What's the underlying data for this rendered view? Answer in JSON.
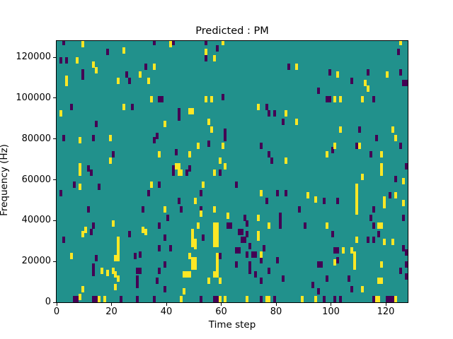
{
  "figure": {
    "title": "Predicted : PM",
    "xlabel": "Time step",
    "ylabel": "Frequency (Hz)"
  },
  "chart_data": {
    "type": "heatmap",
    "title": "Predicted : PM",
    "xlabel": "Time step",
    "ylabel": "Frequency (Hz)",
    "xlim": [
      0,
      128
    ],
    "ylim": [
      0,
      128000
    ],
    "xticks": [
      0,
      20,
      40,
      60,
      80,
      100,
      120
    ],
    "yticks": [
      0,
      20000,
      40000,
      60000,
      80000,
      100000,
      120000
    ],
    "grid": false,
    "legend_position": "none",
    "colormap": "viridis",
    "colors": {
      "background_mid": "#21918c",
      "low_dark": "#440154",
      "high_yellow": "#fde725",
      "spine": "#000000"
    },
    "value_legend": {
      "dark": "low value",
      "background": "mid value",
      "yellow": "high value"
    },
    "cell_units": {
      "x_per_cell": 1,
      "y_hz_per_cell": 1000
    },
    "marks": {
      "dark": [
        [
          2,
          127
        ],
        [
          42,
          127
        ],
        [
          18,
          122
        ],
        [
          1,
          118
        ],
        [
          3,
          118
        ],
        [
          9,
          112
        ],
        [
          9,
          110
        ],
        [
          25,
          111
        ],
        [
          26,
          108
        ],
        [
          5,
          95
        ],
        [
          27,
          95
        ],
        [
          14,
          87
        ],
        [
          2,
          80
        ],
        [
          13,
          80
        ],
        [
          20,
          72
        ],
        [
          11,
          65
        ],
        [
          35,
          127
        ],
        [
          54,
          127
        ],
        [
          58,
          124
        ],
        [
          54,
          119
        ],
        [
          32,
          115
        ],
        [
          37,
          99
        ],
        [
          38,
          99
        ],
        [
          60,
          100
        ],
        [
          44,
          93
        ],
        [
          44,
          90
        ],
        [
          61,
          83
        ],
        [
          61,
          80
        ],
        [
          36,
          81
        ],
        [
          35,
          79
        ],
        [
          55,
          77
        ],
        [
          43,
          73
        ],
        [
          42,
          65
        ],
        [
          48,
          65
        ],
        [
          84,
          115
        ],
        [
          95,
          103
        ],
        [
          76,
          95
        ],
        [
          77,
          92
        ],
        [
          79,
          92
        ],
        [
          82,
          88
        ],
        [
          74,
          76
        ],
        [
          77,
          72
        ],
        [
          78,
          69
        ],
        [
          124,
          122
        ],
        [
          99,
          112
        ],
        [
          107,
          108
        ],
        [
          113,
          112
        ],
        [
          125,
          112
        ],
        [
          126,
          107
        ],
        [
          127,
          107
        ],
        [
          98,
          99
        ],
        [
          99,
          99
        ],
        [
          115,
          99
        ],
        [
          110,
          84
        ],
        [
          116,
          80
        ],
        [
          109,
          76
        ],
        [
          100,
          74
        ],
        [
          114,
          72
        ],
        [
          125,
          76
        ],
        [
          127,
          66
        ],
        [
          12,
          63
        ],
        [
          6,
          57
        ],
        [
          15,
          56
        ],
        [
          1,
          53
        ],
        [
          11,
          45
        ],
        [
          31,
          45
        ],
        [
          13,
          37
        ],
        [
          12,
          34
        ],
        [
          26,
          33
        ],
        [
          2,
          30
        ],
        [
          14,
          21
        ],
        [
          28,
          22
        ],
        [
          30,
          23
        ],
        [
          13,
          17
        ],
        [
          13,
          14
        ],
        [
          29,
          15
        ],
        [
          29,
          11
        ],
        [
          29,
          8
        ],
        [
          30,
          15
        ],
        [
          6,
          1
        ],
        [
          7,
          1
        ],
        [
          13,
          1
        ],
        [
          14,
          1
        ],
        [
          23,
          1
        ],
        [
          29,
          1
        ],
        [
          42,
          63
        ],
        [
          47,
          63
        ],
        [
          59,
          63
        ],
        [
          37,
          57
        ],
        [
          33,
          53
        ],
        [
          52,
          53
        ],
        [
          44,
          49
        ],
        [
          45,
          45
        ],
        [
          52,
          45
        ],
        [
          40,
          41
        ],
        [
          37,
          37
        ],
        [
          62,
          37
        ],
        [
          63,
          37
        ],
        [
          39,
          31
        ],
        [
          53,
          31
        ],
        [
          37,
          26
        ],
        [
          41,
          26
        ],
        [
          59,
          22
        ],
        [
          39,
          18
        ],
        [
          37,
          15
        ],
        [
          36,
          10
        ],
        [
          39,
          6
        ],
        [
          35,
          1
        ],
        [
          52,
          1
        ],
        [
          57,
          1
        ],
        [
          58,
          1
        ],
        [
          65,
          57
        ],
        [
          80,
          53
        ],
        [
          83,
          53
        ],
        [
          76,
          49
        ],
        [
          88,
          45
        ],
        [
          68,
          41
        ],
        [
          81,
          42
        ],
        [
          81,
          39
        ],
        [
          81,
          37
        ],
        [
          69,
          38
        ],
        [
          90,
          37
        ],
        [
          66,
          34
        ],
        [
          67,
          34
        ],
        [
          69,
          33
        ],
        [
          67,
          30
        ],
        [
          68,
          30
        ],
        [
          65,
          25
        ],
        [
          66,
          25
        ],
        [
          70,
          27
        ],
        [
          75,
          26
        ],
        [
          69,
          23
        ],
        [
          71,
          23
        ],
        [
          72,
          23
        ],
        [
          74,
          20
        ],
        [
          65,
          18
        ],
        [
          70,
          18
        ],
        [
          80,
          20
        ],
        [
          95,
          18
        ],
        [
          70,
          15
        ],
        [
          72,
          13
        ],
        [
          77,
          15
        ],
        [
          74,
          10
        ],
        [
          82,
          11
        ],
        [
          93,
          8
        ],
        [
          95,
          5
        ],
        [
          74,
          1
        ],
        [
          79,
          1
        ],
        [
          123,
          60
        ],
        [
          121,
          52
        ],
        [
          97,
          49
        ],
        [
          102,
          49
        ],
        [
          115,
          45
        ],
        [
          114,
          41
        ],
        [
          115,
          37
        ],
        [
          126,
          41
        ],
        [
          100,
          33
        ],
        [
          117,
          33
        ],
        [
          113,
          30
        ],
        [
          115,
          30
        ],
        [
          101,
          25
        ],
        [
          102,
          25
        ],
        [
          126,
          26
        ],
        [
          102,
          20
        ],
        [
          96,
          18
        ],
        [
          125,
          15
        ],
        [
          127,
          24
        ],
        [
          127,
          18
        ],
        [
          127,
          12
        ],
        [
          98,
          11
        ],
        [
          106,
          11
        ],
        [
          107,
          6
        ],
        [
          115,
          1
        ],
        [
          120,
          1
        ],
        [
          121,
          1
        ],
        [
          122,
          1
        ],
        [
          97,
          1
        ],
        [
          101,
          1
        ],
        [
          103,
          1
        ]
      ],
      "yellow": [
        [
          9,
          126
        ],
        [
          24,
          123
        ],
        [
          7,
          118
        ],
        [
          13,
          116
        ],
        [
          14,
          113
        ],
        [
          3,
          109
        ],
        [
          3,
          107
        ],
        [
          22,
          108
        ],
        [
          30,
          111
        ],
        [
          24,
          95
        ],
        [
          1,
          92
        ],
        [
          8,
          79
        ],
        [
          19,
          80
        ],
        [
          19,
          69
        ],
        [
          8,
          66
        ],
        [
          41,
          126
        ],
        [
          60,
          127
        ],
        [
          54,
          122
        ],
        [
          57,
          119
        ],
        [
          35,
          115
        ],
        [
          33,
          108
        ],
        [
          34,
          99
        ],
        [
          54,
          99
        ],
        [
          56,
          99
        ],
        [
          48,
          93
        ],
        [
          49,
          93
        ],
        [
          39,
          87
        ],
        [
          55,
          88
        ],
        [
          56,
          84
        ],
        [
          51,
          76
        ],
        [
          60,
          76
        ],
        [
          37,
          72
        ],
        [
          48,
          72
        ],
        [
          43,
          66
        ],
        [
          44,
          66
        ],
        [
          59,
          69
        ],
        [
          61,
          66
        ],
        [
          87,
          115
        ],
        [
          73,
          95
        ],
        [
          83,
          92
        ],
        [
          87,
          88
        ],
        [
          83,
          69
        ],
        [
          125,
          127
        ],
        [
          102,
          111
        ],
        [
          112,
          107
        ],
        [
          113,
          104
        ],
        [
          120,
          111
        ],
        [
          101,
          99
        ],
        [
          103,
          99
        ],
        [
          111,
          99
        ],
        [
          103,
          84
        ],
        [
          122,
          84
        ],
        [
          123,
          80
        ],
        [
          101,
          76
        ],
        [
          110,
          76
        ],
        [
          98,
          72
        ],
        [
          118,
          72
        ],
        [
          118,
          66
        ],
        [
          8,
          63
        ],
        [
          8,
          56
        ],
        [
          9,
          33
        ],
        [
          10,
          35
        ],
        [
          20,
          38
        ],
        [
          31,
          35
        ],
        [
          22,
          30
        ],
        [
          22,
          27
        ],
        [
          22,
          24
        ],
        [
          22,
          21
        ],
        [
          21,
          21
        ],
        [
          5,
          22
        ],
        [
          16,
          15
        ],
        [
          18,
          14
        ],
        [
          20,
          15
        ],
        [
          21,
          13
        ],
        [
          22,
          11
        ],
        [
          9,
          6
        ],
        [
          21,
          7
        ],
        [
          8,
          2
        ],
        [
          15,
          1
        ],
        [
          17,
          1
        ],
        [
          44,
          63
        ],
        [
          45,
          63
        ],
        [
          57,
          63
        ],
        [
          34,
          57
        ],
        [
          53,
          57
        ],
        [
          50,
          49
        ],
        [
          39,
          45
        ],
        [
          57,
          45
        ],
        [
          52,
          43
        ],
        [
          62,
          42
        ],
        [
          51,
          37
        ],
        [
          57,
          37
        ],
        [
          58,
          37
        ],
        [
          57,
          34
        ],
        [
          58,
          34
        ],
        [
          57,
          31
        ],
        [
          58,
          31
        ],
        [
          57,
          28
        ],
        [
          58,
          28
        ],
        [
          32,
          34
        ],
        [
          49,
          34
        ],
        [
          49,
          31
        ],
        [
          49,
          28
        ],
        [
          50,
          29
        ],
        [
          50,
          27
        ],
        [
          48,
          22
        ],
        [
          49,
          20
        ],
        [
          50,
          20
        ],
        [
          49,
          17
        ],
        [
          50,
          17
        ],
        [
          58,
          22
        ],
        [
          58,
          19
        ],
        [
          58,
          16
        ],
        [
          46,
          13
        ],
        [
          47,
          13
        ],
        [
          48,
          13
        ],
        [
          55,
          10
        ],
        [
          59,
          10
        ],
        [
          57,
          13
        ],
        [
          58,
          13
        ],
        [
          46,
          5
        ],
        [
          45,
          1
        ],
        [
          59,
          1
        ],
        [
          61,
          1
        ],
        [
          74,
          53
        ],
        [
          91,
          52
        ],
        [
          94,
          50
        ],
        [
          73,
          41
        ],
        [
          77,
          37
        ],
        [
          73,
          33
        ],
        [
          73,
          31
        ],
        [
          74,
          23
        ],
        [
          69,
          1
        ],
        [
          76,
          1
        ],
        [
          77,
          1
        ],
        [
          89,
          1
        ],
        [
          94,
          1
        ],
        [
          118,
          63
        ],
        [
          111,
          61
        ],
        [
          126,
          59
        ],
        [
          109,
          56
        ],
        [
          109,
          53
        ],
        [
          109,
          50
        ],
        [
          109,
          47
        ],
        [
          109,
          44
        ],
        [
          123,
          52
        ],
        [
          119,
          50
        ],
        [
          126,
          48
        ],
        [
          119,
          47
        ],
        [
          117,
          37
        ],
        [
          118,
          37
        ],
        [
          98,
          37
        ],
        [
          109,
          30
        ],
        [
          119,
          29
        ],
        [
          122,
          29
        ],
        [
          104,
          25
        ],
        [
          107,
          25
        ],
        [
          108,
          23
        ],
        [
          108,
          20
        ],
        [
          108,
          17
        ],
        [
          118,
          18
        ],
        [
          101,
          19
        ],
        [
          117,
          10
        ],
        [
          118,
          10
        ],
        [
          111,
          6
        ],
        [
          116,
          1
        ],
        [
          117,
          1
        ],
        [
          123,
          1
        ]
      ]
    }
  }
}
